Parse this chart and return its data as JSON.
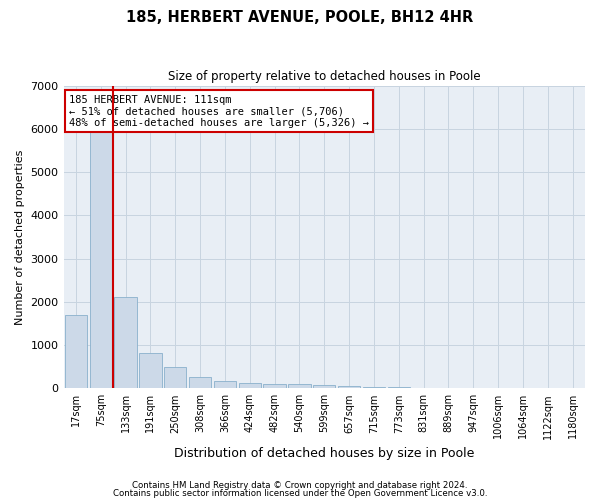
{
  "title": "185, HERBERT AVENUE, POOLE, BH12 4HR",
  "subtitle": "Size of property relative to detached houses in Poole",
  "xlabel": "Distribution of detached houses by size in Poole",
  "ylabel": "Number of detached properties",
  "bar_color": "#ccd9e8",
  "bar_edge_color": "#8ab0cc",
  "vline_color": "#cc0000",
  "vline_x": 1.5,
  "annotation_line1": "185 HERBERT AVENUE: 111sqm",
  "annotation_line2": "← 51% of detached houses are smaller (5,706)",
  "annotation_line3": "48% of semi-detached houses are larger (5,326) →",
  "annotation_box_color": "#ffffff",
  "annotation_box_edge": "#cc0000",
  "categories": [
    "17sqm",
    "75sqm",
    "133sqm",
    "191sqm",
    "250sqm",
    "308sqm",
    "366sqm",
    "424sqm",
    "482sqm",
    "540sqm",
    "599sqm",
    "657sqm",
    "715sqm",
    "773sqm",
    "831sqm",
    "889sqm",
    "947sqm",
    "1006sqm",
    "1064sqm",
    "1122sqm",
    "1180sqm"
  ],
  "values": [
    1700,
    6000,
    2100,
    820,
    500,
    250,
    160,
    115,
    110,
    95,
    75,
    50,
    35,
    20,
    12,
    8,
    5,
    3,
    2,
    2,
    1
  ],
  "ylim": [
    0,
    7000
  ],
  "yticks": [
    0,
    1000,
    2000,
    3000,
    4000,
    5000,
    6000,
    7000
  ],
  "footer1": "Contains HM Land Registry data © Crown copyright and database right 2024.",
  "footer2": "Contains public sector information licensed under the Open Government Licence v3.0.",
  "bg_color": "#ffffff",
  "plot_bg_color": "#e8eef5",
  "grid_color": "#c8d4e0",
  "figsize": [
    6.0,
    5.0
  ],
  "dpi": 100
}
